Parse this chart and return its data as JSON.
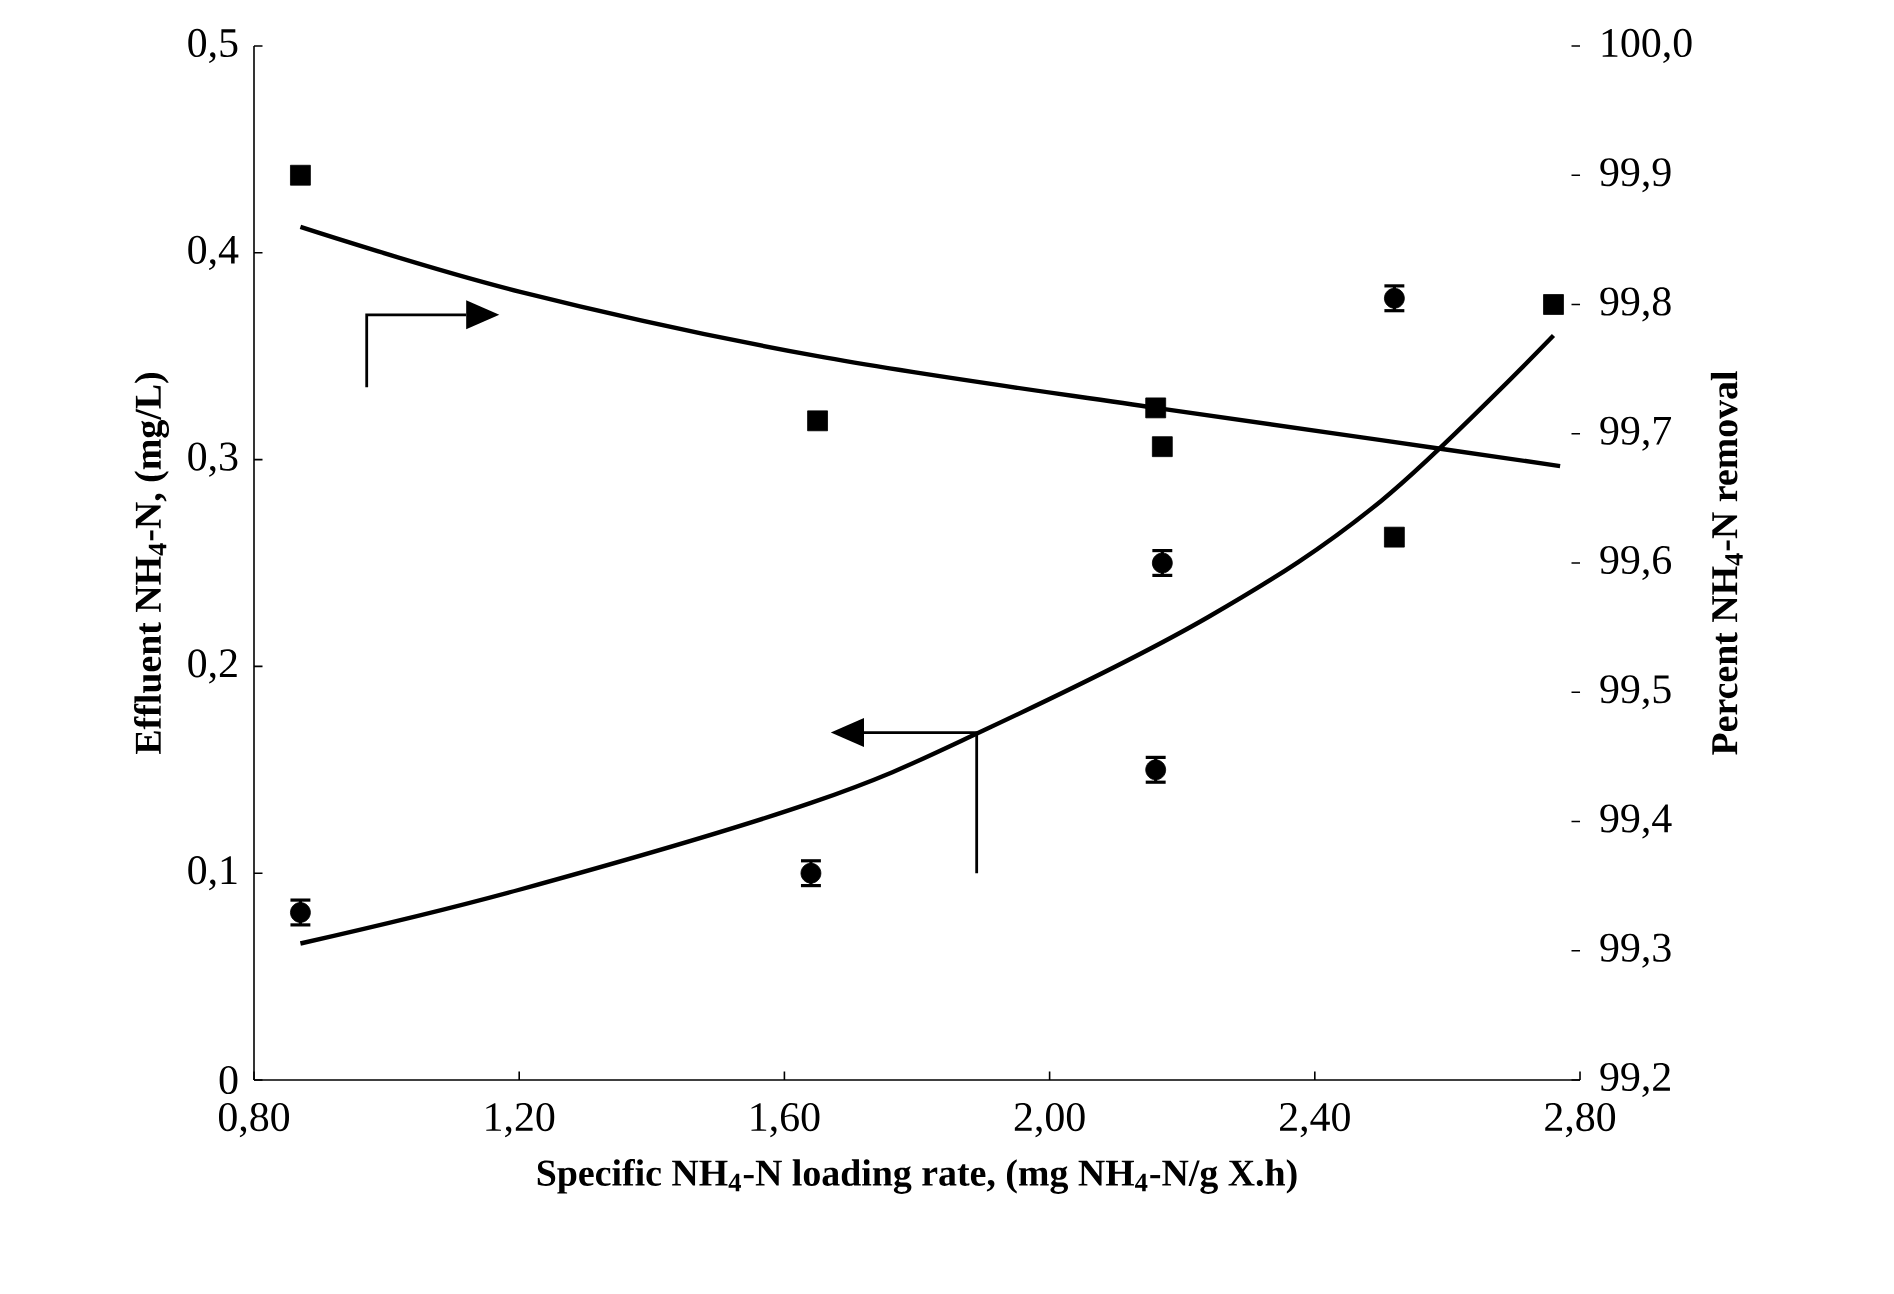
{
  "chart_data": {
    "type": "scatter",
    "xlabel": "Specific NH$_{4}$-N loading rate, (mg NH$_{4}$-N/g X.h)",
    "ylabel": "Effluent NH$_{4}$-N, (mg/L)",
    "y2label": "Percent NH$_{4}$-N removal",
    "xlim": [
      0.8,
      2.8
    ],
    "xticks": [
      {
        "value": 0.8,
        "label": "0,80"
      },
      {
        "value": 1.2,
        "label": "1,20"
      },
      {
        "value": 1.6,
        "label": "1,60"
      },
      {
        "value": 2.0,
        "label": "2,00"
      },
      {
        "value": 2.4,
        "label": "2,40"
      },
      {
        "value": 2.8,
        "label": "2,80"
      }
    ],
    "ylim": [
      0,
      0.5
    ],
    "yticks": [
      0,
      {
        "value": 0.1,
        "label": "0,1"
      },
      {
        "value": 0.2,
        "label": "0,2"
      },
      {
        "value": 0.3,
        "label": "0,3"
      },
      {
        "value": 0.4,
        "label": "0,4"
      },
      {
        "value": 0.5,
        "label": "0,5"
      }
    ],
    "y2lim": [
      99.2,
      100.0
    ],
    "y2ticks": [
      {
        "value": 99.2,
        "label": "99,2"
      },
      {
        "value": 99.3,
        "label": "99,3"
      },
      {
        "value": 99.4,
        "label": "99,4"
      },
      {
        "value": 99.5,
        "label": "99,5"
      },
      {
        "value": 99.6,
        "label": "99,6"
      },
      {
        "value": 99.7,
        "label": "99,7"
      },
      {
        "value": 99.8,
        "label": "99,8"
      },
      {
        "value": 99.9,
        "label": "99,9"
      },
      {
        "value": 100.0,
        "label": "100,0"
      }
    ],
    "series": [
      {
        "marker": "circle",
        "color": "#000000",
        "x": [
          0.87,
          1.64,
          2.16,
          2.17,
          2.52
        ],
        "values": [
          0.081,
          0.1,
          0.15,
          0.25,
          0.378
        ],
        "errors": [
          0.006,
          0.006,
          0.006,
          0.006,
          0.006
        ]
      },
      {
        "marker": "square",
        "color": "#000000",
        "axis": "y2",
        "x": [
          0.87,
          1.65,
          2.16,
          2.17,
          2.52,
          2.76
        ],
        "values": [
          99.9,
          99.71,
          99.72,
          99.69,
          99.62,
          99.8
        ]
      },
      {
        "type": "line",
        "marker": "none",
        "color": "#000000",
        "x": [
          0.87,
          1.2,
          1.64,
          1.9,
          2.24,
          2.5,
          2.76
        ],
        "values": [
          0.066,
          0.092,
          0.134,
          0.169,
          0.224,
          0.28,
          0.36
        ]
      },
      {
        "type": "line",
        "marker": "none",
        "color": "#000000",
        "axis": "y2",
        "x": [
          0.87,
          1.2,
          1.65,
          2.16,
          2.5,
          2.77
        ],
        "values": [
          99.86,
          99.81,
          99.76,
          99.72,
          99.695,
          99.675
        ]
      }
    ]
  }
}
